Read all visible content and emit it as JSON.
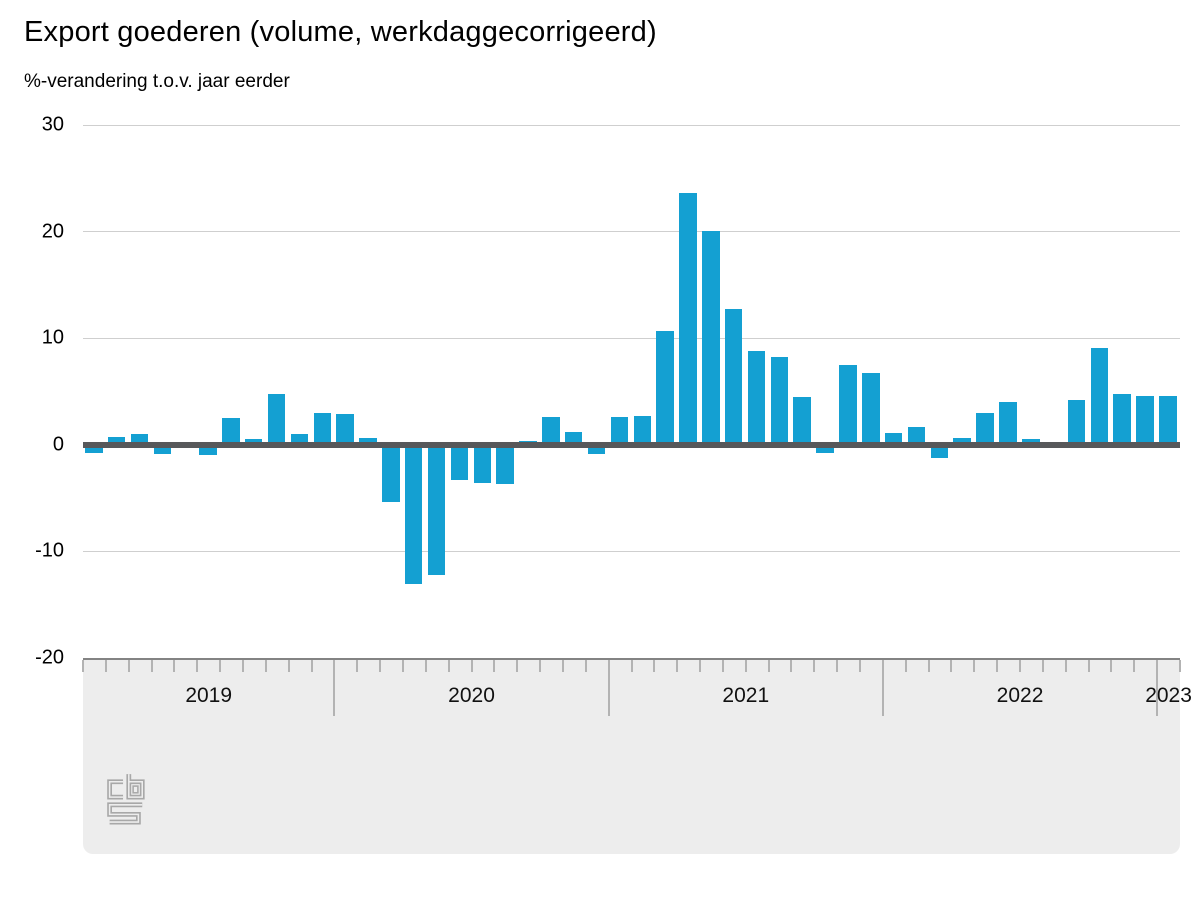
{
  "page": {
    "title": "Export goederen (volume, werkdaggecorrigeerd)",
    "subtitle": "%-verandering t.o.v. jaar eerder"
  },
  "chart_data": {
    "type": "bar",
    "title": "Export goederen (volume, werkdaggecorrigeerd)",
    "subtitle": "%-verandering t.o.v. jaar eerder",
    "unit": "%",
    "categories": [
      "2019-02",
      "2019-03",
      "2019-04",
      "2019-05",
      "2019-06",
      "2019-07",
      "2019-08",
      "2019-09",
      "2019-10",
      "2019-11",
      "2019-12",
      "2020-01",
      "2020-02",
      "2020-03",
      "2020-04",
      "2020-05",
      "2020-06",
      "2020-07",
      "2020-08",
      "2020-09",
      "2020-10",
      "2020-11",
      "2020-12",
      "2021-01",
      "2021-02",
      "2021-03",
      "2021-04",
      "2021-05",
      "2021-06",
      "2021-07",
      "2021-08",
      "2021-09",
      "2021-10",
      "2021-11",
      "2021-12",
      "2022-01",
      "2022-02",
      "2022-03",
      "2022-04",
      "2022-05",
      "2022-06",
      "2022-07",
      "2022-08",
      "2022-09",
      "2022-10",
      "2022-11",
      "2022-12",
      "2023-01"
    ],
    "values": [
      -0.8,
      0.7,
      1.0,
      -0.9,
      -0.3,
      -1.0,
      2.5,
      0.5,
      4.8,
      1.0,
      3.0,
      2.9,
      0.6,
      -5.4,
      -13.1,
      -12.2,
      -3.3,
      -3.6,
      -3.7,
      0.4,
      2.6,
      1.2,
      -0.9,
      2.6,
      2.7,
      10.7,
      23.6,
      20.1,
      12.7,
      8.8,
      8.2,
      4.5,
      -0.8,
      7.5,
      6.7,
      1.1,
      1.7,
      -1.2,
      0.6,
      3.0,
      4.0,
      0.5,
      -0.3,
      4.2,
      9.1,
      4.8,
      4.6,
      4.6
    ],
    "ylim": [
      -20,
      30
    ],
    "yticks": [
      30,
      20,
      10,
      0,
      -10,
      -20
    ],
    "year_labels": [
      "2019",
      "2020",
      "2021",
      "2022",
      "2023"
    ],
    "xlabel": "",
    "ylabel": "%-verandering t.o.v. jaar eerder",
    "grid": true,
    "legend": false,
    "bar_color": "#14a0d2",
    "zero_line_color": "#57585a",
    "gridline_color": "#cfcfcf",
    "axis_band_color": "#ededed",
    "tick_color": "#b3b3b3",
    "logo_color": "#a8a8a8"
  },
  "footer": {
    "logo": "cbs-logo"
  }
}
